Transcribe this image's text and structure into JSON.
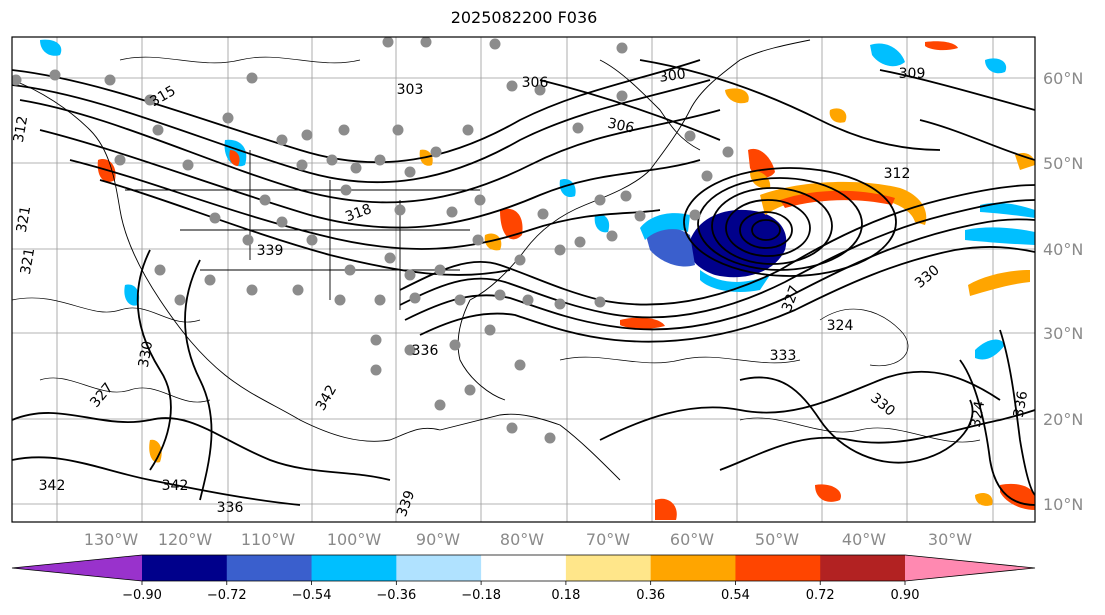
{
  "title": "2025082200 F036",
  "map": {
    "lon_ticks": [
      "130°W",
      "120°W",
      "110°W",
      "100°W",
      "90°W",
      "80°W",
      "70°W",
      "60°W",
      "50°W",
      "40°W",
      "30°W"
    ],
    "lat_ticks": [
      "60°N",
      "50°N",
      "40°N",
      "30°N",
      "20°N",
      "10°N"
    ],
    "contour_labels": [
      "300",
      "303",
      "306",
      "306",
      "309",
      "312",
      "315",
      "318",
      "321",
      "321",
      "324",
      "327",
      "327",
      "330",
      "330",
      "333",
      "336",
      "336",
      "339",
      "339",
      "342",
      "342",
      "342",
      "336",
      "324",
      "312",
      "330"
    ]
  },
  "colorbar": {
    "colors": [
      "#9932cc",
      "#00008b",
      "#3a5fcd",
      "#00bfff",
      "#b0e2ff",
      "#ffffff",
      "#ffe68a",
      "#ffa500",
      "#ff4500",
      "#b22222",
      "#ff89b1"
    ],
    "tick_labels": [
      "−0.90",
      "−0.72",
      "−0.54",
      "−0.36",
      "−0.18",
      "0.18",
      "0.36",
      "0.54",
      "0.72",
      "0.90"
    ]
  }
}
